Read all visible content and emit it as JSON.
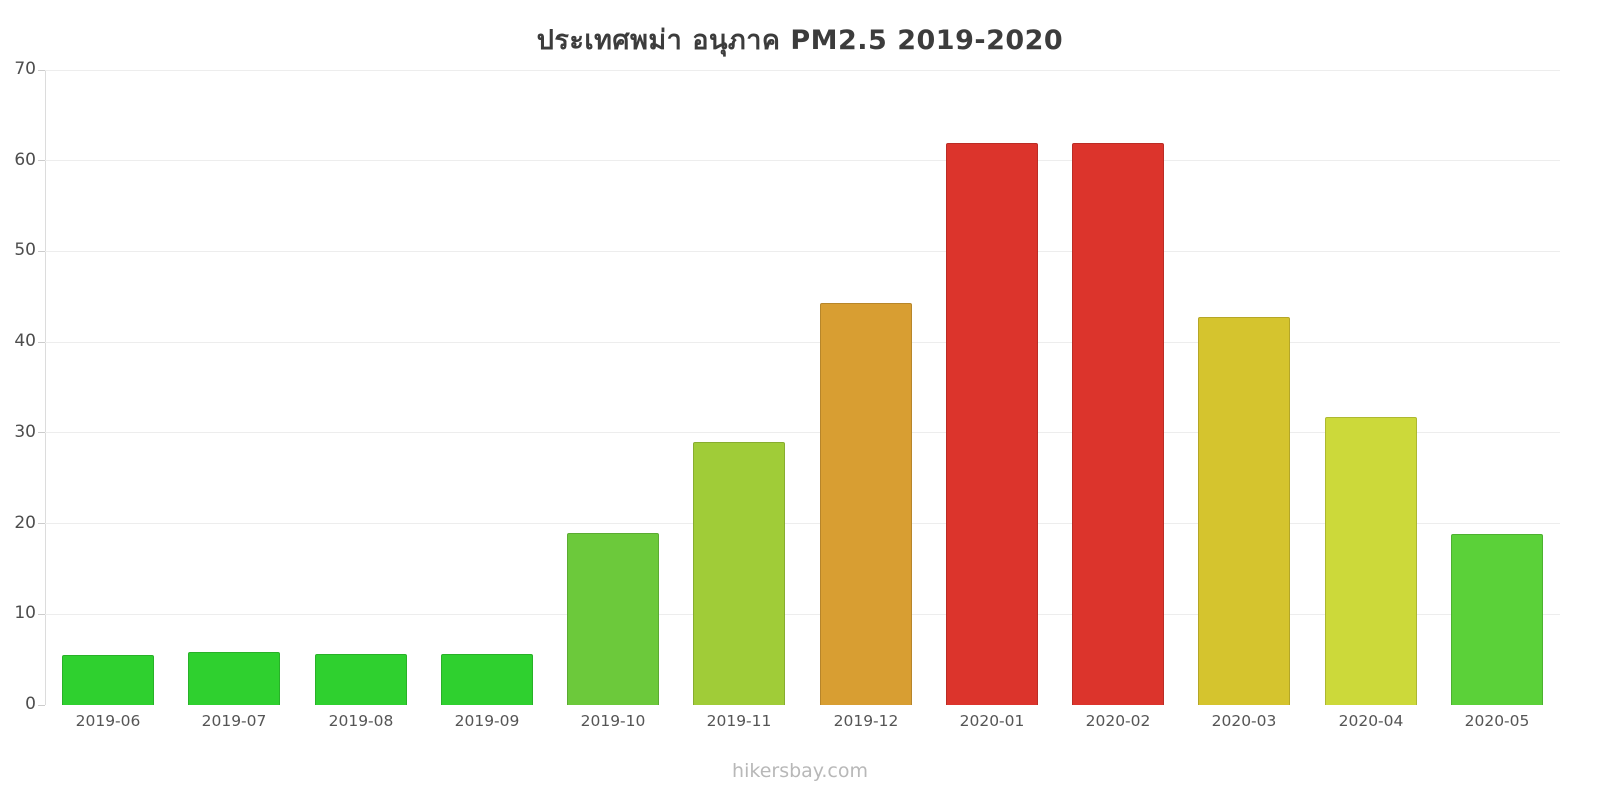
{
  "page": {
    "footer": "hikersbay.com"
  },
  "chart_data": {
    "type": "bar",
    "title": "ประเทศพม่า อนุภาค PM2.5 2019-2020",
    "categories": [
      "2019-06",
      "2019-07",
      "2019-08",
      "2019-09",
      "2019-10",
      "2019-11",
      "2019-12",
      "2020-01",
      "2020-02",
      "2020-03",
      "2020-04",
      "2020-05"
    ],
    "values": [
      5.5,
      5.8,
      5.6,
      5.6,
      19,
      29,
      44.3,
      62,
      62,
      42.8,
      31.8,
      18.8
    ],
    "bar_colors": [
      "#2fd02f",
      "#2fd02f",
      "#2fd02f",
      "#2fd02f",
      "#6cc93b",
      "#a0cc38",
      "#d89e32",
      "#dc342c",
      "#dc342c",
      "#d5c42e",
      "#ccd93a",
      "#5bd139"
    ],
    "xlabel": "",
    "ylabel": "",
    "ylim": [
      0,
      70
    ],
    "yticks": [
      0,
      10,
      20,
      30,
      40,
      50,
      60,
      70
    ],
    "grid": "horizontal light-gray gridlines",
    "legend_position": "none"
  }
}
